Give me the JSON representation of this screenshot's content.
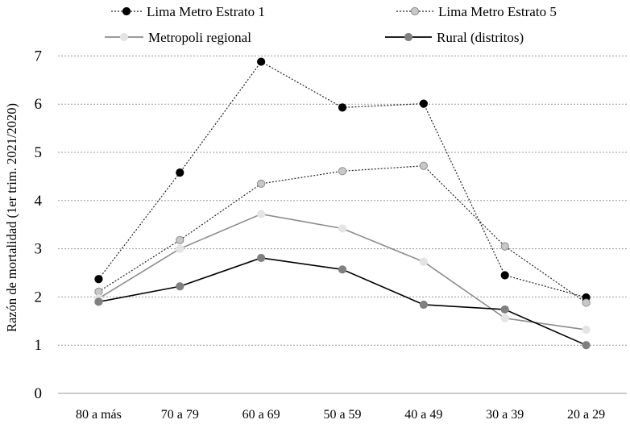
{
  "chart_data": {
    "type": "line",
    "title": "",
    "xlabel": "",
    "ylabel": "Razón de mortalidad (1er trim. 2021/2020)",
    "categories": [
      "80 a más",
      "70 a 79",
      "60 a 69",
      "50 a 59",
      "40 a 49",
      "30 a 39",
      "20 a 29"
    ],
    "ylim": [
      0,
      7
    ],
    "yticks": [
      "0",
      "1",
      "2",
      "3",
      "4",
      "5",
      "6",
      "7"
    ],
    "grid": "horizontal dotted",
    "legend_position": "top",
    "series": [
      {
        "name": "Lima Metro Estrato 1",
        "values": [
          2.37,
          4.58,
          6.88,
          5.93,
          6.01,
          2.45,
          1.99
        ],
        "line_color": "#222222",
        "line_style": "dotted",
        "marker_fill": "#000000",
        "marker_stroke": "#000000"
      },
      {
        "name": "Lima Metro Estrato 5",
        "values": [
          2.11,
          3.18,
          4.35,
          4.61,
          4.72,
          3.05,
          1.88
        ],
        "line_color": "#222222",
        "line_style": "dotted",
        "marker_fill": "#c8c8c8",
        "marker_stroke": "#8c8c8c"
      },
      {
        "name": "Metropoli  regional",
        "values": [
          1.97,
          3.0,
          3.72,
          3.42,
          2.73,
          1.56,
          1.32
        ],
        "line_color": "#8c8c8c",
        "line_style": "solid",
        "marker_fill": "#e4e4e4",
        "marker_stroke": "#e4e4e4"
      },
      {
        "name": "Rural (distritos)",
        "values": [
          1.9,
          2.22,
          2.81,
          2.57,
          1.84,
          1.74,
          1.0
        ],
        "line_color": "#000000",
        "line_style": "solid",
        "marker_fill": "#808080",
        "marker_stroke": "#808080"
      }
    ]
  }
}
